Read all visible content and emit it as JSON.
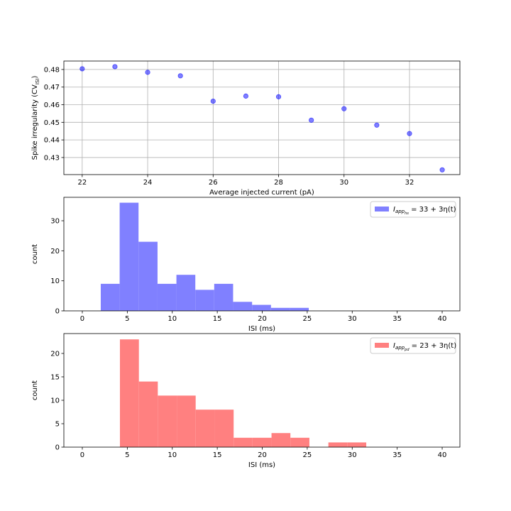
{
  "chart_data": [
    {
      "type": "scatter",
      "xlabel": "Average injected current (pA)",
      "ylabel": {
        "text": "Spike irregularity (CV",
        "sub": "ISI",
        "end": ")"
      },
      "x": [
        22,
        23,
        24,
        25,
        26,
        27,
        28,
        29,
        30,
        31,
        32,
        33
      ],
      "values": [
        0.4804,
        0.4816,
        0.4784,
        0.4764,
        0.462,
        0.4649,
        0.4645,
        0.4512,
        0.4577,
        0.4484,
        0.4436,
        0.423
      ],
      "color": "#0000ff",
      "xlim": [
        21.44,
        33.54
      ],
      "ylim": [
        0.4203,
        0.4848
      ],
      "xticks": [
        22,
        24,
        26,
        28,
        30,
        32
      ],
      "yticks": [
        0.43,
        0.44,
        0.45,
        0.46,
        0.47,
        0.48
      ],
      "grid": true
    },
    {
      "type": "histogram",
      "xlabel": "ISI (ms)",
      "ylabel": {
        "text": "count"
      },
      "bins": [
        2.05,
        4.15,
        6.25,
        8.36,
        10.46,
        12.56,
        14.66,
        16.76,
        18.87,
        20.97,
        23.07,
        25.17
      ],
      "values": [
        9,
        36,
        23,
        9,
        12,
        7,
        9,
        3,
        2,
        1,
        1
      ],
      "color": "#8080ff",
      "legend": {
        "main": "I",
        "sub": "app",
        "subsub": "hs",
        "rest": " = 33 + 3η(t)"
      },
      "legend_position": "upper right",
      "xlim": [
        -2.05,
        41.97
      ],
      "ylim": [
        0,
        37.8
      ],
      "xticks": [
        0,
        5,
        10,
        15,
        20,
        25,
        30,
        35,
        40
      ],
      "yticks": [
        0,
        10,
        20,
        30
      ],
      "grid": false
    },
    {
      "type": "histogram",
      "xlabel": "ISI (ms)",
      "ylabel": {
        "text": "count"
      },
      "bins": [
        4.18,
        6.29,
        8.39,
        10.5,
        12.6,
        14.71,
        16.82,
        18.92,
        21.03,
        23.13,
        25.24,
        27.35,
        29.45,
        31.56
      ],
      "values": [
        23,
        14,
        11,
        11,
        8,
        8,
        2,
        2,
        3,
        2,
        0,
        1,
        1
      ],
      "color": "#ff8080",
      "legend": {
        "main": "I",
        "sub": "app",
        "subsub": "pd",
        "rest": " = 23 + 3η(t)"
      },
      "legend_position": "upper right",
      "xlim": [
        -2.05,
        41.97
      ],
      "ylim": [
        0,
        24.24
      ],
      "xticks": [
        0,
        5,
        10,
        15,
        20,
        25,
        30,
        35,
        40
      ],
      "yticks": [
        0,
        5,
        10,
        15,
        20
      ],
      "grid": false
    }
  ]
}
